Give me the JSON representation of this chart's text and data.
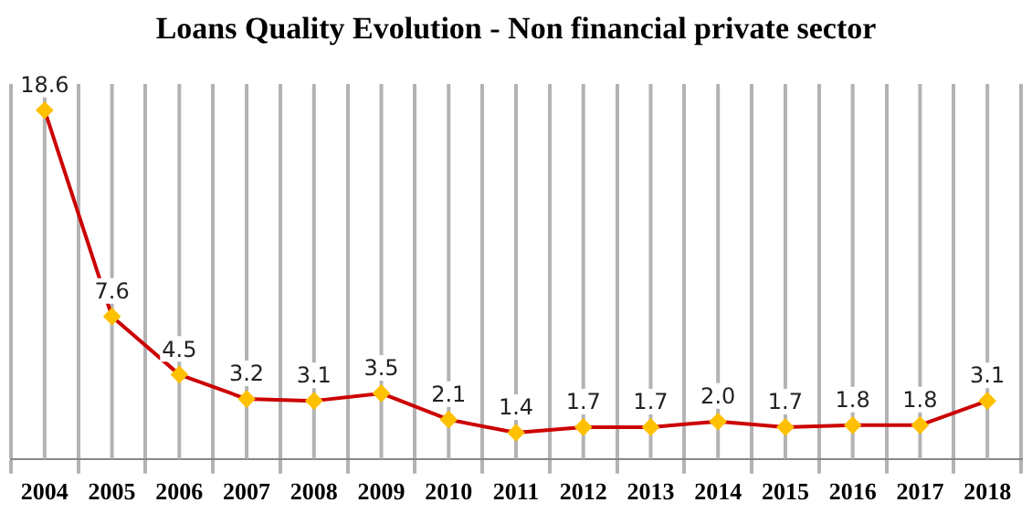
{
  "chart_data": {
    "type": "line",
    "title": "Loans Quality Evolution - Non financial private sector",
    "categories": [
      "2004",
      "2005",
      "2006",
      "2007",
      "2008",
      "2009",
      "2010",
      "2011",
      "2012",
      "2013",
      "2014",
      "2015",
      "2016",
      "2017",
      "2018"
    ],
    "series": [
      {
        "color": "#cc0000",
        "colors": [
          "#ffc000",
          "#ffc000",
          "#ffc000",
          "#ffc000",
          "#ffc000",
          "#ffc000",
          "#ffc000",
          "#ffc000",
          "#ffc000",
          "#ffc000",
          "#ffc000",
          "#ffc000",
          "#ffc000",
          "#ffc000",
          "#ffc000"
        ],
        "values": [
          18.6,
          7.6,
          4.5,
          3.2,
          3.1,
          3.5,
          2.1,
          1.4,
          1.7,
          1.7,
          2.0,
          1.7,
          1.8,
          1.8,
          3.1
        ],
        "value_labels": [
          "18.6",
          "7.6",
          "4.5",
          "3.2",
          "3.1",
          "3.5",
          "2.1",
          "1.4",
          "1.7",
          "1.7",
          "2.0",
          "1.7",
          "1.8",
          "1.8",
          "3.1"
        ]
      }
    ],
    "grid": "x",
    "legend": false,
    "marker": "diamond",
    "line_style": "solid"
  }
}
